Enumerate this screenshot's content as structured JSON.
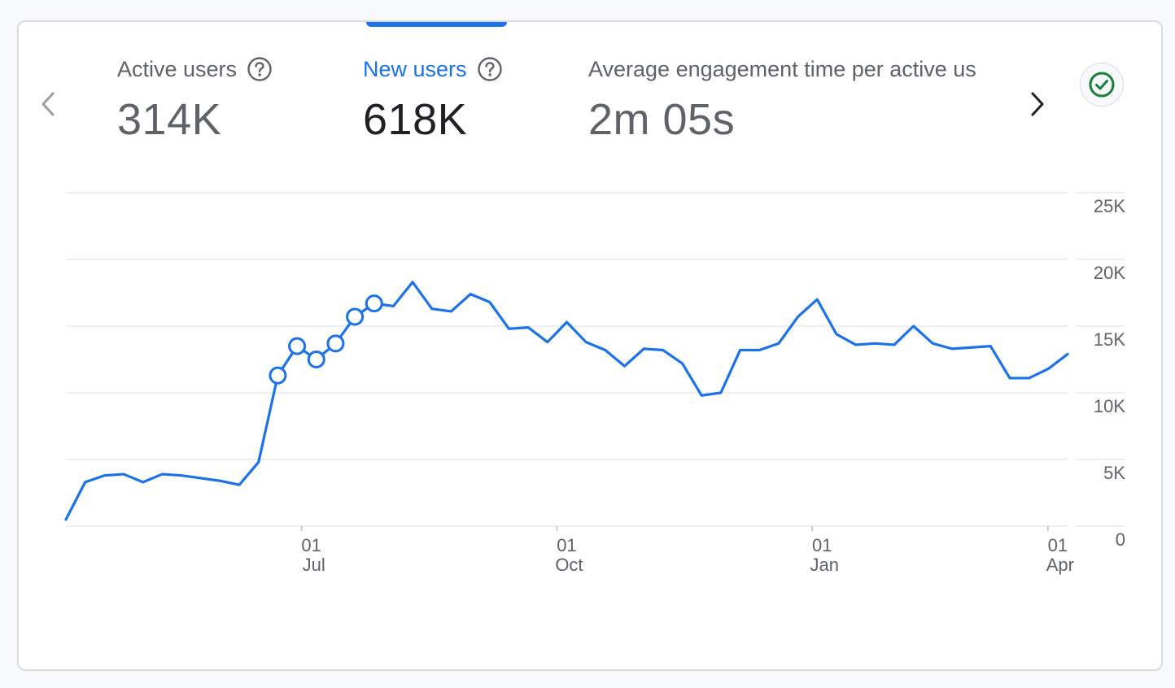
{
  "metrics": [
    {
      "label": "Active users",
      "value": "314K",
      "active": false
    },
    {
      "label": "New users",
      "value": "618K",
      "active": true
    },
    {
      "label": "Average engagement time per active us",
      "value": "2m 05s",
      "active": false
    }
  ],
  "icons": {
    "prev": "chevron-left-icon",
    "next": "chevron-right-icon",
    "help": "help-circle-icon",
    "status": "check-circle-icon"
  },
  "colors": {
    "accent": "#1a73e8",
    "line": "#1a73e8",
    "status_ok": "#188038"
  },
  "chart_data": {
    "type": "line",
    "x_ticks": [
      {
        "day": "01",
        "month": "Jul",
        "x": 12
      },
      {
        "day": "01",
        "month": "Oct",
        "x": 25
      },
      {
        "day": "01",
        "month": "Jan",
        "x": 38
      },
      {
        "day": "01",
        "month": "Apr",
        "x": 50
      }
    ],
    "y_ticks": [
      "0",
      "5K",
      "10K",
      "15K",
      "20K",
      "25K"
    ],
    "ylim": [
      0,
      25000
    ],
    "xlim": [
      0,
      51
    ],
    "grid": true,
    "series": [
      {
        "values": [
          500,
          3300,
          3800,
          3900,
          3300,
          3900,
          3800,
          3600,
          3400,
          3100,
          4800,
          11300,
          13500,
          12500,
          13700,
          15700,
          16700,
          16500,
          18300,
          16300,
          16100,
          17400,
          16800,
          14800,
          14900,
          13800,
          15300,
          13800,
          13200,
          12000,
          13300,
          13200,
          12200,
          9800,
          10000,
          13200,
          13200,
          13700,
          15700,
          17000,
          14400,
          13600,
          13700,
          13600,
          15000,
          13700,
          13300,
          13400,
          13500,
          11100,
          11100,
          11800,
          12900
        ],
        "highlighted_points": [
          11,
          12,
          13,
          14,
          15,
          16
        ]
      }
    ]
  }
}
